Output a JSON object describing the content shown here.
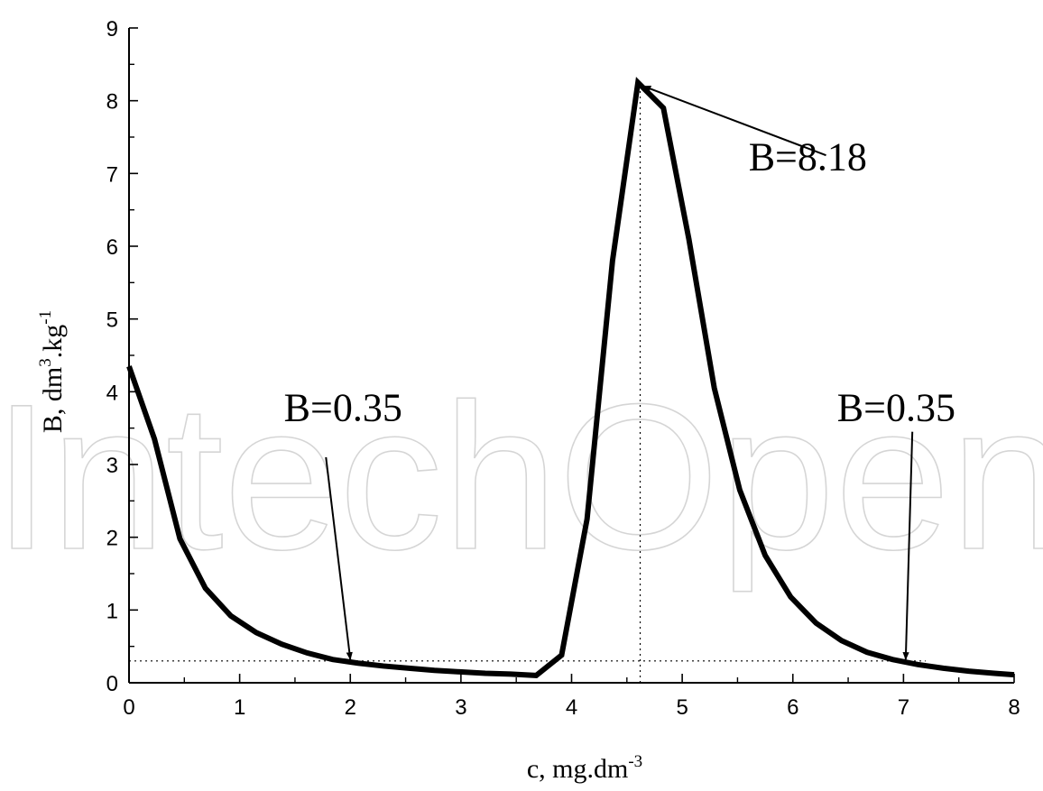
{
  "chart_data": {
    "type": "line",
    "title": "",
    "xlabel": "c, mg.dm",
    "xlabel_superscript": "-3",
    "ylabel_prefix": "B, dm",
    "ylabel_superscript_1": "3",
    "ylabel_middle": ".kg",
    "ylabel_superscript_2": "-1",
    "xlim": [
      0,
      8
    ],
    "ylim": [
      0,
      9
    ],
    "xticks": [
      "0",
      "1",
      "2",
      "3",
      "4",
      "5",
      "6",
      "7",
      "8"
    ],
    "yticks": [
      "0",
      "1",
      "2",
      "3",
      "4",
      "5",
      "6",
      "7",
      "8",
      "9"
    ],
    "grid": false,
    "series": [
      {
        "x": [
          0,
          0.23,
          0.46,
          0.69,
          0.92,
          1.15,
          1.38,
          1.61,
          1.84,
          2.07,
          2.3,
          2.53,
          2.76,
          2.99,
          3.22,
          3.45,
          3.68,
          3.91,
          4.14,
          4.37,
          4.6,
          4.83,
          5.06,
          5.29,
          5.52,
          5.75,
          5.98,
          6.21,
          6.44,
          6.67,
          6.9,
          7.13,
          7.36,
          7.59,
          7.82,
          8.0
        ],
        "y": [
          4.35,
          3.35,
          1.98,
          1.3,
          0.92,
          0.69,
          0.53,
          0.41,
          0.32,
          0.27,
          0.23,
          0.2,
          0.17,
          0.15,
          0.13,
          0.12,
          0.1,
          0.38,
          2.25,
          5.8,
          8.25,
          7.9,
          6.1,
          4.05,
          2.65,
          1.75,
          1.18,
          0.82,
          0.58,
          0.42,
          0.32,
          0.25,
          0.2,
          0.16,
          0.13,
          0.11
        ]
      }
    ],
    "reference_lines": {
      "horizontal_y": 0.3,
      "vertical_x": 4.62
    },
    "annotations": [
      {
        "text": "B=8.18",
        "label_at": [
          5.6,
          7.05
        ],
        "arrow_from": [
          6.3,
          7.25
        ],
        "arrow_to": [
          4.65,
          8.2
        ]
      },
      {
        "text": "B=0.35",
        "label_at": [
          1.4,
          3.6
        ],
        "arrow_from": [
          1.78,
          3.1
        ],
        "arrow_to": [
          2.0,
          0.32
        ]
      },
      {
        "text": "B=0.35",
        "label_at": [
          6.4,
          3.6
        ],
        "arrow_from": [
          7.08,
          3.45
        ],
        "arrow_to": [
          7.02,
          0.32
        ]
      }
    ]
  },
  "watermark": {
    "text": "IntechOpen"
  }
}
